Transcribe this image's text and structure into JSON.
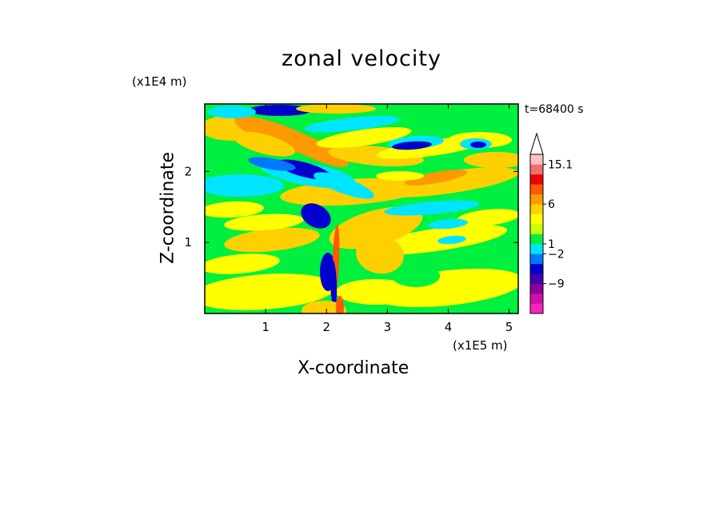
{
  "chart_data": {
    "type": "heatmap",
    "title": "zonal velocity",
    "xlabel": "X-coordinate",
    "ylabel": "Z-coordinate",
    "x_multiplier": "(x1E5 m)",
    "y_multiplier": "(x1E4 m)",
    "time_label": "t=68400 s",
    "xlim": [
      0,
      5.15
    ],
    "ylim": [
      0,
      2.95
    ],
    "x_ticks": [
      1,
      2,
      3,
      4,
      5
    ],
    "x_tick_labels": [
      "1",
      "2",
      "3",
      "4",
      "5"
    ],
    "y_ticks": [
      1,
      2
    ],
    "y_tick_labels": [
      "1",
      "2"
    ],
    "colorbar": {
      "labels": [
        {
          "value": 15.1,
          "text": "15.1"
        },
        {
          "value": 6,
          "text": "6"
        },
        {
          "value": 1,
          "text": "1"
        },
        {
          "value": -2,
          "text": "−2"
        },
        {
          "value": -9,
          "text": "−9"
        }
      ],
      "colors": [
        "#ff22bb",
        "#cc11aa",
        "#880099",
        "#4400aa",
        "#0000cc",
        "#0077ff",
        "#00e5ff",
        "#00f040",
        "#c8ff00",
        "#ffff00",
        "#ffd000",
        "#ff9900",
        "#ff5a00",
        "#ee0000",
        "#f07070",
        "#ffc0c0"
      ],
      "extend": "max"
    }
  }
}
